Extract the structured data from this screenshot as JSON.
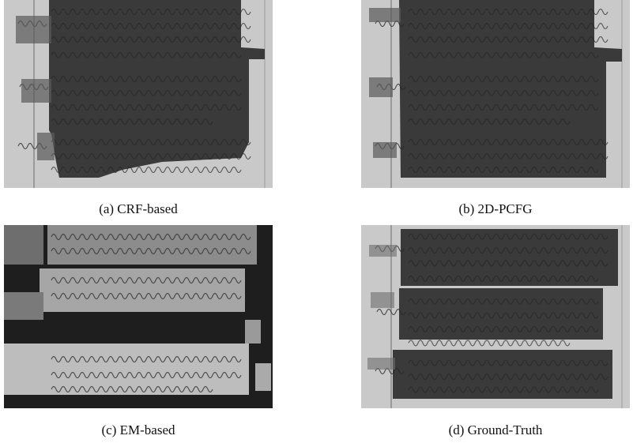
{
  "figure": {
    "panels": [
      {
        "caption": "(a) CRF-based"
      },
      {
        "caption": "(b) 2D-PCFG"
      },
      {
        "caption": "(c) EM-based"
      },
      {
        "caption": "(d) Ground-Truth"
      }
    ]
  }
}
